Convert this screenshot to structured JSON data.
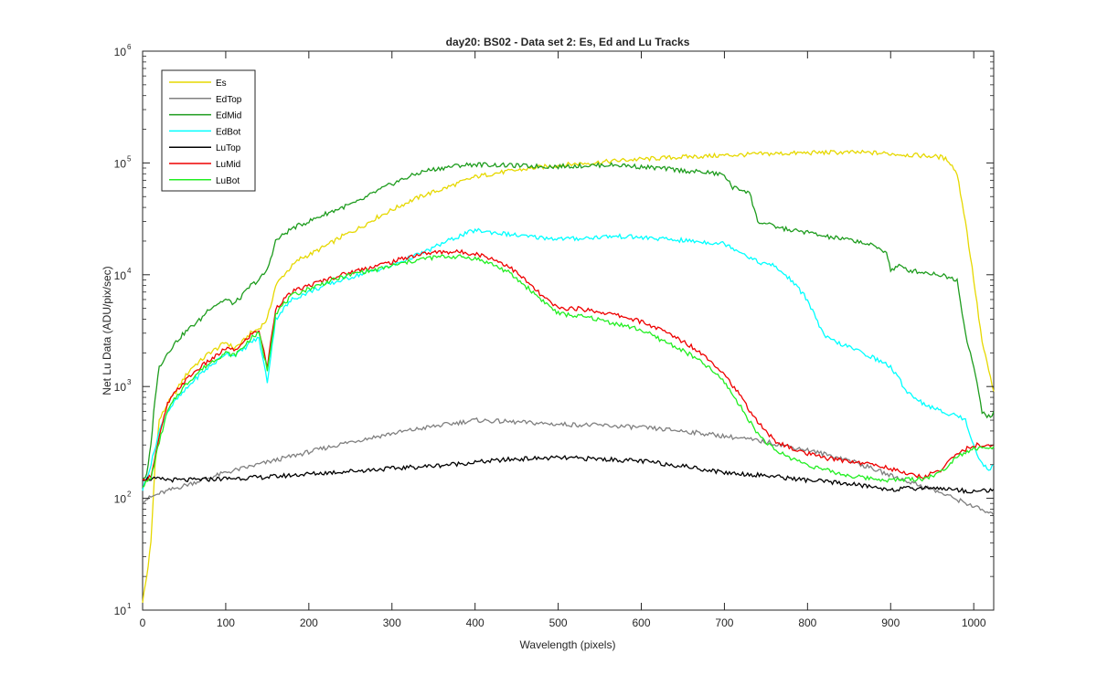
{
  "chart_data": {
    "type": "line",
    "title": "day20: BS02 - Data set 2: Es, Ed and Lu Tracks",
    "xlabel": "Wavelength (pixels)",
    "ylabel": "Net Lu Data (ADU/pix/sec)",
    "xlim": [
      0,
      1024
    ],
    "ylim": [
      10,
      1000000
    ],
    "yscale": "log",
    "x_ticks": [
      0,
      100,
      200,
      300,
      400,
      500,
      600,
      700,
      800,
      900,
      1000
    ],
    "y_ticks": [
      {
        "value": 10,
        "base": "10",
        "exp": "1"
      },
      {
        "value": 100,
        "base": "10",
        "exp": "2"
      },
      {
        "value": 1000,
        "base": "10",
        "exp": "3"
      },
      {
        "value": 10000,
        "base": "10",
        "exp": "4"
      },
      {
        "value": 100000,
        "base": "10",
        "exp": "5"
      },
      {
        "value": 1000000,
        "base": "10",
        "exp": "6"
      }
    ],
    "grid": false,
    "legend_position": "top-left",
    "series": [
      {
        "name": "Es",
        "color": "#e6d800",
        "x": [
          0,
          5,
          10,
          15,
          20,
          30,
          40,
          50,
          60,
          70,
          80,
          90,
          100,
          110,
          120,
          130,
          140,
          150,
          160,
          170,
          180,
          190,
          200,
          220,
          240,
          260,
          280,
          300,
          320,
          340,
          360,
          380,
          400,
          420,
          440,
          460,
          480,
          500,
          520,
          540,
          560,
          580,
          600,
          620,
          640,
          660,
          680,
          700,
          720,
          740,
          760,
          780,
          800,
          820,
          840,
          860,
          880,
          900,
          920,
          940,
          960,
          970,
          980,
          990,
          1000,
          1010,
          1020,
          1024
        ],
        "y": [
          12,
          20,
          40,
          200,
          500,
          700,
          900,
          1200,
          1500,
          1700,
          2000,
          2200,
          2500,
          2200,
          2500,
          3000,
          3300,
          4000,
          8000,
          10000,
          12000,
          14000,
          15000,
          18000,
          22000,
          26000,
          32000,
          38000,
          45000,
          52000,
          58000,
          66000,
          75000,
          80000,
          84000,
          88000,
          92000,
          95000,
          98000,
          100000,
          103000,
          106000,
          108000,
          110000,
          112000,
          114000,
          115000,
          117000,
          118000,
          120000,
          121000,
          122000,
          123000,
          124000,
          124000,
          124000,
          123000,
          121000,
          118000,
          116000,
          113000,
          105000,
          80000,
          30000,
          9000,
          2500,
          1200,
          900
        ]
      },
      {
        "name": "EdTop",
        "color": "#808080",
        "x": [
          0,
          20,
          50,
          100,
          150,
          200,
          250,
          300,
          350,
          400,
          450,
          500,
          550,
          600,
          650,
          700,
          750,
          800,
          850,
          900,
          950,
          1000,
          1024
        ],
        "y": [
          95,
          110,
          130,
          170,
          210,
          260,
          320,
          380,
          440,
          500,
          480,
          460,
          450,
          430,
          400,
          360,
          320,
          270,
          220,
          160,
          120,
          85,
          70
        ]
      },
      {
        "name": "EdMid",
        "color": "#1e9c1e",
        "x": [
          0,
          5,
          10,
          15,
          20,
          30,
          40,
          50,
          60,
          70,
          80,
          90,
          100,
          110,
          120,
          130,
          140,
          150,
          160,
          170,
          180,
          190,
          200,
          220,
          240,
          260,
          280,
          300,
          320,
          340,
          360,
          380,
          400,
          420,
          440,
          460,
          480,
          500,
          520,
          540,
          560,
          580,
          600,
          620,
          640,
          660,
          680,
          700,
          710,
          720,
          730,
          740,
          760,
          780,
          800,
          820,
          840,
          860,
          880,
          895,
          900,
          910,
          920,
          940,
          960,
          980,
          990,
          1000,
          1010,
          1020,
          1024
        ],
        "y": [
          150,
          160,
          300,
          800,
          1500,
          2000,
          2500,
          3000,
          3500,
          4000,
          5000,
          5500,
          6000,
          5500,
          6500,
          8000,
          9000,
          11000,
          20000,
          23000,
          26000,
          28000,
          30000,
          35000,
          40000,
          45000,
          55000,
          65000,
          75000,
          85000,
          90000,
          95000,
          97000,
          96000,
          95000,
          94000,
          93000,
          93000,
          94000,
          95000,
          96000,
          95000,
          92000,
          90000,
          87000,
          84000,
          82000,
          78000,
          60000,
          58000,
          55000,
          30000,
          27000,
          25000,
          24000,
          22000,
          21000,
          20000,
          18000,
          16000,
          11000,
          12000,
          11000,
          10500,
          10000,
          9000,
          3000,
          1500,
          600,
          520,
          600
        ]
      },
      {
        "name": "EdBot",
        "color": "#00ffff",
        "x": [
          0,
          10,
          20,
          30,
          40,
          50,
          60,
          70,
          80,
          90,
          100,
          110,
          120,
          130,
          140,
          150,
          160,
          170,
          180,
          190,
          200,
          220,
          240,
          260,
          280,
          300,
          320,
          340,
          360,
          380,
          400,
          420,
          440,
          460,
          480,
          500,
          520,
          540,
          560,
          580,
          600,
          620,
          640,
          660,
          680,
          700,
          720,
          740,
          760,
          780,
          800,
          820,
          840,
          860,
          880,
          900,
          920,
          940,
          960,
          980,
          990,
          1000,
          1010,
          1020,
          1024
        ],
        "y": [
          120,
          200,
          400,
          600,
          750,
          900,
          1100,
          1300,
          1500,
          1700,
          2000,
          1900,
          2100,
          2500,
          2700,
          1100,
          4000,
          5000,
          6000,
          6500,
          7000,
          8000,
          9000,
          10000,
          11000,
          12000,
          14000,
          16000,
          19000,
          22000,
          25000,
          24000,
          23000,
          22000,
          21500,
          21000,
          21000,
          21500,
          22000,
          22000,
          21500,
          21000,
          20500,
          20000,
          19500,
          19000,
          16000,
          13000,
          12000,
          9000,
          6000,
          2800,
          2400,
          2100,
          1800,
          1500,
          900,
          700,
          600,
          550,
          500,
          300,
          200,
          180,
          200
        ]
      },
      {
        "name": "LuTop",
        "color": "#000000",
        "x": [
          0,
          50,
          100,
          150,
          200,
          250,
          300,
          350,
          400,
          450,
          500,
          550,
          600,
          650,
          700,
          750,
          800,
          850,
          900,
          950,
          1000,
          1024
        ],
        "y": [
          150,
          145,
          150,
          155,
          165,
          175,
          185,
          195,
          210,
          225,
          230,
          225,
          215,
          195,
          170,
          160,
          145,
          135,
          120,
          125,
          115,
          120
        ]
      },
      {
        "name": "LuMid",
        "color": "#ee0000",
        "x": [
          0,
          10,
          20,
          30,
          40,
          50,
          60,
          70,
          80,
          90,
          100,
          110,
          120,
          130,
          140,
          150,
          160,
          170,
          180,
          190,
          200,
          220,
          240,
          260,
          280,
          300,
          320,
          340,
          360,
          380,
          400,
          420,
          440,
          460,
          480,
          500,
          520,
          540,
          560,
          580,
          600,
          620,
          640,
          660,
          680,
          700,
          720,
          740,
          760,
          780,
          800,
          820,
          840,
          860,
          880,
          900,
          920,
          940,
          960,
          980,
          1000,
          1020,
          1024
        ],
        "y": [
          140,
          160,
          350,
          700,
          900,
          1100,
          1300,
          1500,
          1700,
          1900,
          2200,
          2100,
          2400,
          2900,
          3200,
          1500,
          5000,
          6000,
          7000,
          7500,
          8000,
          9000,
          10000,
          11000,
          12000,
          13000,
          14500,
          15500,
          16000,
          16000,
          15500,
          14000,
          12000,
          9000,
          6500,
          5000,
          5000,
          4800,
          4500,
          4200,
          3800,
          3300,
          2800,
          2300,
          1800,
          1300,
          800,
          480,
          330,
          280,
          250,
          230,
          220,
          210,
          200,
          185,
          165,
          155,
          180,
          250,
          300,
          290,
          300
        ]
      },
      {
        "name": "LuBot",
        "color": "#22ee22",
        "x": [
          0,
          10,
          20,
          30,
          40,
          50,
          60,
          70,
          80,
          90,
          100,
          110,
          120,
          130,
          140,
          150,
          160,
          170,
          180,
          190,
          200,
          220,
          240,
          260,
          280,
          300,
          320,
          340,
          360,
          380,
          400,
          420,
          440,
          460,
          480,
          500,
          520,
          540,
          560,
          580,
          600,
          620,
          640,
          660,
          680,
          700,
          720,
          740,
          760,
          780,
          800,
          820,
          840,
          860,
          880,
          900,
          920,
          940,
          960,
          980,
          1000,
          1020,
          1024
        ],
        "y": [
          130,
          150,
          320,
          600,
          800,
          1000,
          1200,
          1400,
          1600,
          1800,
          2000,
          1900,
          2200,
          2700,
          3000,
          1400,
          4500,
          5500,
          6500,
          7000,
          7500,
          8500,
          9500,
          10500,
          11000,
          12000,
          13000,
          14000,
          14500,
          14500,
          14000,
          12500,
          10500,
          8000,
          6000,
          4500,
          4300,
          4100,
          3800,
          3500,
          3200,
          2700,
          2300,
          1900,
          1500,
          1100,
          650,
          380,
          270,
          230,
          200,
          180,
          165,
          155,
          150,
          145,
          148,
          150,
          170,
          240,
          280,
          280,
          290
        ]
      }
    ]
  }
}
